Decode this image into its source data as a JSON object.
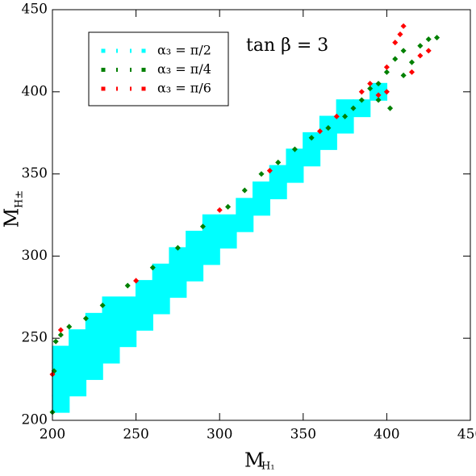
{
  "chart_data": {
    "type": "scatter",
    "annotation": "tan β = 3",
    "x_label": "M",
    "x_label_sub": "H₁",
    "y_label": "M",
    "y_label_sub": "H±",
    "xlim": [
      200,
      450
    ],
    "ylim": [
      200,
      450
    ],
    "xticks": [
      200,
      250,
      300,
      350,
      400,
      450
    ],
    "yticks": [
      200,
      250,
      300,
      350,
      400,
      450
    ],
    "legend": "upper left",
    "series": [
      {
        "name": "α₃ = π/2",
        "color": "#00ffff",
        "x": [
          205,
          205,
          205,
          205,
          215,
          215,
          215,
          215,
          225,
          225,
          225,
          225,
          235,
          235,
          235,
          235,
          245,
          245,
          245,
          255,
          255,
          255,
          265,
          265,
          265,
          275,
          275,
          275,
          285,
          285,
          285,
          295,
          295,
          295,
          305,
          305,
          315,
          315,
          325,
          325,
          335,
          335,
          345,
          345,
          355,
          355,
          365,
          365,
          375,
          375,
          385,
          395
        ],
        "y": [
          210,
          220,
          230,
          240,
          220,
          230,
          240,
          250,
          230,
          240,
          250,
          260,
          240,
          250,
          260,
          270,
          250,
          260,
          270,
          260,
          270,
          280,
          270,
          280,
          290,
          280,
          290,
          300,
          290,
          300,
          310,
          300,
          310,
          320,
          310,
          320,
          320,
          330,
          330,
          340,
          340,
          350,
          350,
          360,
          360,
          370,
          370,
          380,
          380,
          390,
          390,
          400
        ]
      },
      {
        "name": "α₃ = π/4",
        "color": "#008000",
        "x": [
          202,
          205,
          210,
          220,
          230,
          245,
          260,
          275,
          290,
          305,
          315,
          325,
          335,
          345,
          355,
          365,
          375,
          385,
          390,
          395,
          400,
          405,
          410,
          415,
          420,
          425,
          430,
          200,
          201,
          380,
          395,
          410,
          402
        ],
        "y": [
          248,
          252,
          257,
          262,
          270,
          282,
          293,
          305,
          318,
          330,
          340,
          350,
          357,
          365,
          372,
          378,
          385,
          395,
          402,
          405,
          412,
          420,
          425,
          418,
          428,
          432,
          433,
          205,
          230,
          390,
          395,
          410,
          390
        ]
      },
      {
        "name": "α₃ = π/6",
        "color": "#ff0000",
        "x": [
          200,
          205,
          250,
          300,
          330,
          360,
          370,
          385,
          390,
          400,
          405,
          408,
          410,
          420,
          425,
          415,
          400,
          395
        ],
        "y": [
          228,
          255,
          285,
          328,
          352,
          376,
          385,
          400,
          405,
          415,
          430,
          435,
          440,
          422,
          425,
          412,
          400,
          398
        ]
      }
    ]
  }
}
